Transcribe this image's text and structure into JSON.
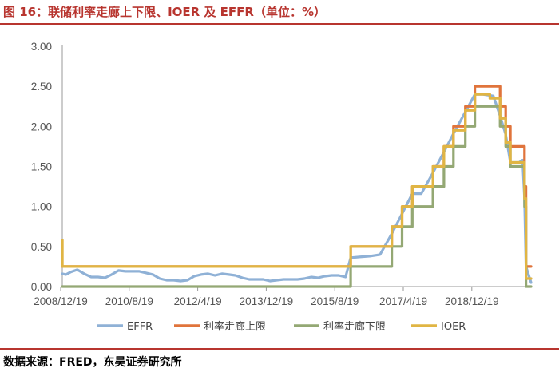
{
  "header": {
    "title": "图 16：联储利率走廊上下限、IOER 及 EFFR（单位：%）"
  },
  "footer": {
    "source": "数据来源：FRED，东吴证券研究所"
  },
  "chart_data": {
    "type": "line",
    "x_tick_labels": [
      "2008/12/19",
      "2010/8/19",
      "2012/4/19",
      "2013/12/19",
      "2015/8/19",
      "2017/4/19",
      "2018/12/19"
    ],
    "y_tick_labels": [
      "0.00",
      "0.50",
      "1.00",
      "1.50",
      "2.00",
      "2.50",
      "3.00"
    ],
    "ylim": [
      0,
      3
    ],
    "xlim": [
      "2008-12-19",
      "2020-04-30"
    ],
    "grid": false,
    "legend_position": "bottom",
    "colors": {
      "EFFR": "#8fb1d6",
      "利率走廊上限": "#e0743c",
      "利率走廊下限": "#94a874",
      "IOER": "#e0b544"
    },
    "series": [
      {
        "name": "EFFR",
        "x": [
          "2008-12-19",
          "2009-01-20",
          "2009-03-01",
          "2009-05-01",
          "2009-07-01",
          "2009-09-01",
          "2009-11-01",
          "2010-01-01",
          "2010-03-01",
          "2010-05-01",
          "2010-07-01",
          "2010-09-01",
          "2010-11-01",
          "2011-01-01",
          "2011-03-01",
          "2011-05-01",
          "2011-07-01",
          "2011-09-01",
          "2011-11-01",
          "2012-01-01",
          "2012-03-01",
          "2012-05-01",
          "2012-07-01",
          "2012-09-01",
          "2012-11-01",
          "2013-01-01",
          "2013-03-01",
          "2013-05-01",
          "2013-07-01",
          "2013-09-01",
          "2013-11-01",
          "2014-01-01",
          "2014-03-01",
          "2014-05-01",
          "2014-07-01",
          "2014-09-01",
          "2014-11-01",
          "2015-01-01",
          "2015-03-01",
          "2015-05-01",
          "2015-07-01",
          "2015-09-01",
          "2015-11-01",
          "2015-12-16",
          "2016-03-01",
          "2016-06-01",
          "2016-09-01",
          "2016-12-14",
          "2017-03-15",
          "2017-06-14",
          "2017-09-01",
          "2017-12-13",
          "2018-03-21",
          "2018-06-13",
          "2018-09-26",
          "2018-12-19",
          "2019-03-01",
          "2019-06-01",
          "2019-07-31",
          "2019-09-18",
          "2019-10-30",
          "2019-12-15",
          "2020-01-15",
          "2020-02-15",
          "2020-03-03",
          "2020-03-16",
          "2020-04-30"
        ],
        "y": [
          0.16,
          0.15,
          0.18,
          0.21,
          0.16,
          0.12,
          0.12,
          0.11,
          0.15,
          0.2,
          0.19,
          0.19,
          0.19,
          0.17,
          0.15,
          0.1,
          0.08,
          0.08,
          0.07,
          0.08,
          0.13,
          0.15,
          0.16,
          0.14,
          0.16,
          0.15,
          0.14,
          0.11,
          0.09,
          0.09,
          0.09,
          0.07,
          0.08,
          0.09,
          0.09,
          0.09,
          0.1,
          0.12,
          0.11,
          0.13,
          0.14,
          0.14,
          0.12,
          0.36,
          0.37,
          0.38,
          0.4,
          0.66,
          0.91,
          1.16,
          1.16,
          1.42,
          1.68,
          1.91,
          2.18,
          2.4,
          2.4,
          2.38,
          2.13,
          1.9,
          1.55,
          1.55,
          1.55,
          1.58,
          1.1,
          0.25,
          0.05
        ]
      },
      {
        "name": "利率走廊上限",
        "x": [
          "2008-12-19",
          "2015-12-16",
          "2016-12-14",
          "2017-03-15",
          "2017-06-14",
          "2017-12-13",
          "2018-03-21",
          "2018-06-13",
          "2018-09-26",
          "2018-12-19",
          "2019-07-31",
          "2019-09-18",
          "2019-10-30",
          "2020-03-03",
          "2020-03-16",
          "2020-04-30"
        ],
        "y": [
          0.25,
          0.5,
          0.75,
          1.0,
          1.25,
          1.5,
          1.75,
          2.0,
          2.25,
          2.5,
          2.25,
          2.0,
          1.75,
          1.25,
          0.25,
          0.25
        ]
      },
      {
        "name": "利率走廊下限",
        "x": [
          "2008-12-19",
          "2015-12-16",
          "2016-12-14",
          "2017-03-15",
          "2017-06-14",
          "2017-12-13",
          "2018-03-21",
          "2018-06-13",
          "2018-09-26",
          "2018-12-19",
          "2019-07-31",
          "2019-09-18",
          "2019-10-30",
          "2020-03-03",
          "2020-03-16",
          "2020-04-30"
        ],
        "y": [
          0.0,
          0.25,
          0.5,
          0.75,
          1.0,
          1.25,
          1.5,
          1.75,
          2.0,
          2.25,
          2.0,
          1.75,
          1.5,
          1.0,
          0.0,
          0.0
        ]
      },
      {
        "name": "IOER",
        "x": [
          "2008-12-19",
          "2008-12-20",
          "2015-12-16",
          "2016-12-14",
          "2017-03-15",
          "2017-06-14",
          "2017-12-13",
          "2018-03-21",
          "2018-06-13",
          "2018-09-26",
          "2018-12-19",
          "2019-05-01",
          "2019-07-31",
          "2019-09-18",
          "2019-10-30",
          "2020-03-03",
          "2020-03-16",
          "2020-04-30"
        ],
        "y": [
          0.58,
          0.25,
          0.5,
          0.75,
          1.0,
          1.25,
          1.5,
          1.75,
          1.95,
          2.2,
          2.4,
          2.35,
          2.1,
          1.8,
          1.55,
          1.1,
          0.1,
          0.1
        ]
      }
    ]
  }
}
